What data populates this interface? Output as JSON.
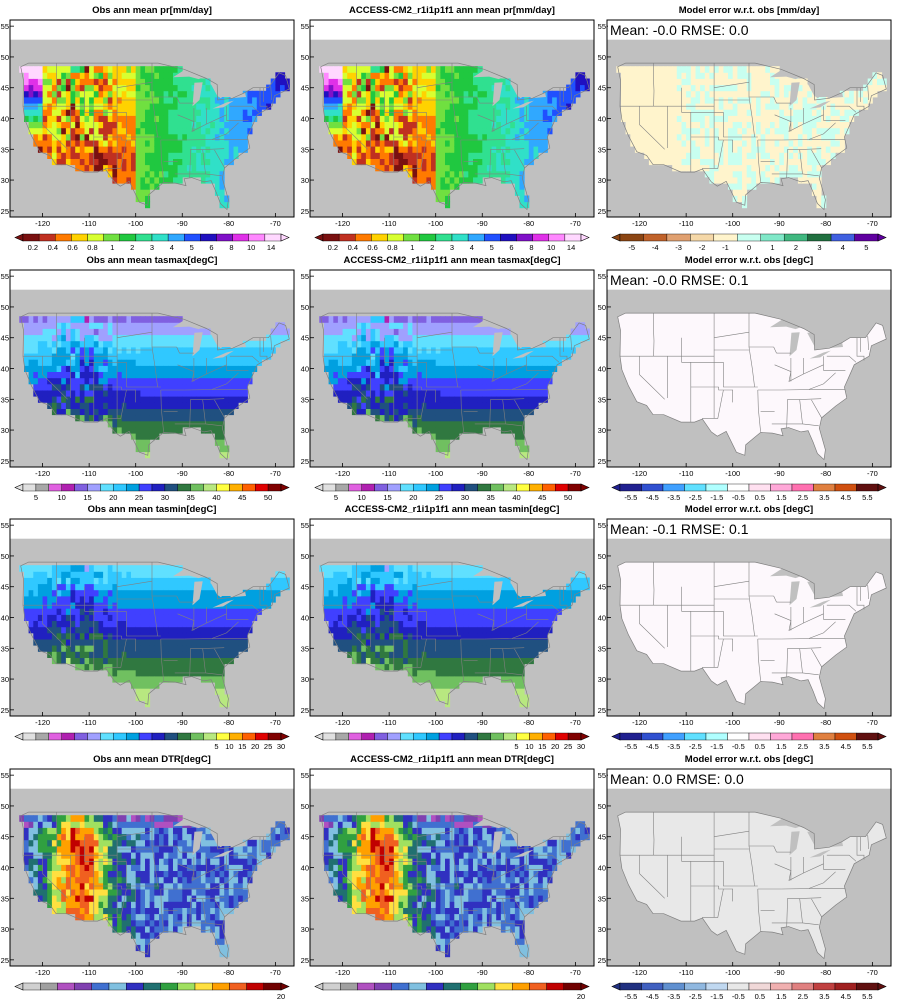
{
  "colors": {
    "land_gray": "#c0c0c0",
    "pr": [
      "#7a1010",
      "#c03020",
      "#ff7a00",
      "#ffd200",
      "#d8ff30",
      "#70e040",
      "#20c840",
      "#30e090",
      "#30e0c8",
      "#30a8ff",
      "#2050ff",
      "#2010c0",
      "#8010c8",
      "#e030e8",
      "#ff88ff",
      "#ffd8ff"
    ],
    "pr_err": [
      "#8b4513",
      "#c0622a",
      "#e0a070",
      "#f5d8a8",
      "#fff4cc",
      "#c8fff0",
      "#80e8c8",
      "#40b880",
      "#207040",
      "#4060e0",
      "#6000a0"
    ],
    "temp": [
      "#e0e0e0",
      "#a8a8a8",
      "#e060e0",
      "#b020b0",
      "#8060e0",
      "#a0a0ff",
      "#60e0ff",
      "#30c8ff",
      "#00a0e0",
      "#4040ff",
      "#2020c0",
      "#205080",
      "#307840",
      "#70c060",
      "#b8e880",
      "#ffff40",
      "#ffb000",
      "#ff6000",
      "#e00000",
      "#800000"
    ],
    "temp_err": [
      "#202090",
      "#3050d0",
      "#40a0ff",
      "#60e0ff",
      "#b0ffff",
      "#ffffff",
      "#ffe0f0",
      "#ffa8d8",
      "#ff70b0",
      "#e08040",
      "#d05010",
      "#601010"
    ],
    "dtr": [
      "#d0d0d0",
      "#a0a0a0",
      "#b050c0",
      "#8040b0",
      "#4070d0",
      "#80c0e0",
      "#3030c0",
      "#207070",
      "#30a040",
      "#a0e060",
      "#ffe040",
      "#ffa000",
      "#f06020",
      "#c00000",
      "#700000"
    ],
    "dtr_err": [
      "#203080",
      "#4060c0",
      "#6090d0",
      "#90b8e0",
      "#c0d8f0",
      "#e8e8e8",
      "#f0d8d8",
      "#f0b0b0",
      "#e08080",
      "#c04040",
      "#a02020",
      "#601010"
    ]
  },
  "panels": [
    {
      "title": "Obs  ann mean pr[mm/day]",
      "stat": "",
      "map": "pr_obs",
      "cbar": "pr",
      "cbar_labels": [
        "0.2",
        "0.4",
        "0.6",
        "0.8",
        "1",
        "2",
        "3",
        "4",
        "5",
        "6",
        "8",
        "10",
        "14"
      ]
    },
    {
      "title": "ACCESS-CM2_r1i1p1f1 ann mean pr[mm/day]",
      "stat": "",
      "map": "pr_mod",
      "cbar": "pr",
      "cbar_labels": [
        "0.2",
        "0.4",
        "0.6",
        "0.8",
        "1",
        "2",
        "3",
        "4",
        "5",
        "6",
        "8",
        "10",
        "14"
      ]
    },
    {
      "title": "Model error w.r.t. obs [mm/day]",
      "stat": "Mean: -0.0   RMSE: 0.0",
      "map": "pr_err",
      "cbar": "pr_err",
      "cbar_labels": [
        "-5",
        "-4",
        "-3",
        "-2",
        "-1",
        "0",
        "1",
        "2",
        "3",
        "4",
        "5"
      ]
    },
    {
      "title": "Obs  ann mean tasmax[degC]",
      "stat": "",
      "map": "tasmax",
      "cbar": "temp",
      "cbar_labels": [
        "5",
        "10",
        "15",
        "20",
        "25",
        "30",
        "35",
        "40",
        "45",
        "50"
      ]
    },
    {
      "title": "ACCESS-CM2_r1i1p1f1 ann mean tasmax[degC]",
      "stat": "",
      "map": "tasmax",
      "cbar": "temp",
      "cbar_labels": [
        "5",
        "10",
        "15",
        "20",
        "25",
        "30",
        "35",
        "40",
        "45",
        "50"
      ]
    },
    {
      "title": "Model error w.r.t. obs [degC]",
      "stat": "Mean: -0.0   RMSE: 0.1",
      "map": "white_err",
      "cbar": "temp_err",
      "cbar_labels": [
        "-5.5",
        "-4.5",
        "-3.5",
        "-2.5",
        "-1.5",
        "-0.5",
        "0.5",
        "1.5",
        "2.5",
        "3.5",
        "4.5",
        "5.5"
      ]
    },
    {
      "title": "Obs  ann mean tasmin[degC]",
      "stat": "",
      "map": "tasmin",
      "cbar": "temp",
      "cbar_labels": [
        "5",
        "10",
        "15",
        "20",
        "25",
        "30"
      ]
    },
    {
      "title": "ACCESS-CM2_r1i1p1f1 ann mean tasmin[degC]",
      "stat": "",
      "map": "tasmin",
      "cbar": "temp",
      "cbar_labels": [
        "5",
        "10",
        "15",
        "20",
        "25",
        "30"
      ]
    },
    {
      "title": "Model error w.r.t. obs [degC]",
      "stat": "Mean: -0.1   RMSE: 0.1",
      "map": "white_err",
      "cbar": "temp_err",
      "cbar_labels": [
        "-5.5",
        "-4.5",
        "-3.5",
        "-2.5",
        "-1.5",
        "-0.5",
        "0.5",
        "1.5",
        "2.5",
        "3.5",
        "4.5",
        "5.5"
      ]
    },
    {
      "title": "Obs  ann mean DTR[degC]",
      "stat": "",
      "map": "dtr",
      "cbar": "dtr",
      "cbar_labels": [
        "20"
      ]
    },
    {
      "title": "ACCESS-CM2_r1i1p1f1 ann mean DTR[degC]",
      "stat": "",
      "map": "dtr",
      "cbar": "dtr",
      "cbar_labels": [
        "20"
      ]
    },
    {
      "title": "Model error w.r.t. obs [degC]",
      "stat": "Mean: 0.0   RMSE: 0.0",
      "map": "gray_err",
      "cbar": "dtr_err",
      "cbar_labels": [
        "-5.5",
        "-4.5",
        "-3.5",
        "-2.5",
        "-1.5",
        "-0.5",
        "0.5",
        "1.5",
        "2.5",
        "3.5",
        "4.5",
        "5.5"
      ]
    }
  ],
  "chart_data": {
    "type": "heatmap",
    "layout": "4 rows x 3 columns of map panels",
    "x_ticks": [
      "-120",
      "-110",
      "-100",
      "-90",
      "-80",
      "-70"
    ],
    "y_ticks": [
      "25",
      "30",
      "35",
      "40",
      "45",
      "50",
      "55"
    ],
    "xlim": [
      -127,
      -66
    ],
    "ylim": [
      24,
      56
    ],
    "rows": [
      {
        "variable": "pr",
        "units": "mm/day",
        "error_mean": "-0.0",
        "error_rmse": "0.0"
      },
      {
        "variable": "tasmax",
        "units": "degC",
        "error_mean": "-0.0",
        "error_rmse": "0.1"
      },
      {
        "variable": "tasmin",
        "units": "degC",
        "error_mean": "-0.1",
        "error_rmse": "0.1"
      },
      {
        "variable": "DTR",
        "units": "degC",
        "error_mean": "0.0",
        "error_rmse": "0.0"
      }
    ]
  }
}
